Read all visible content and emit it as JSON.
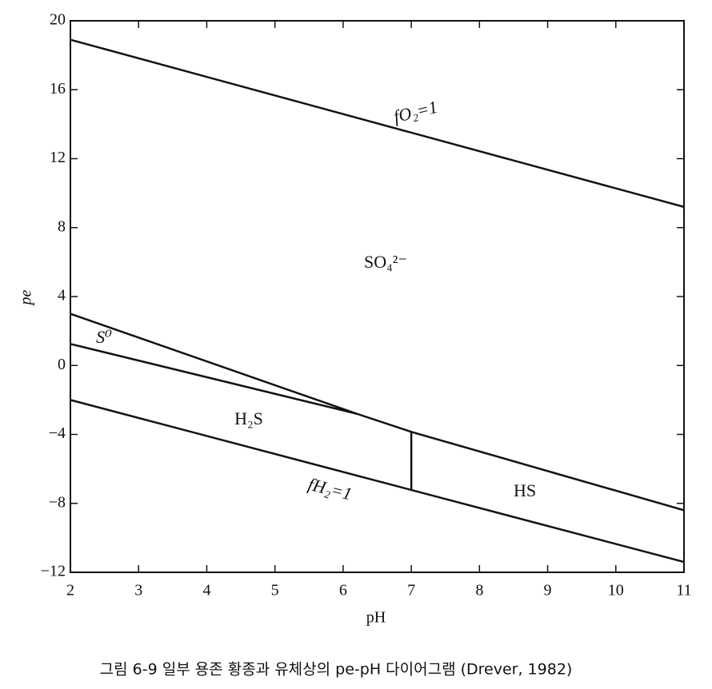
{
  "chart_data": {
    "type": "line",
    "xlabel": "pH",
    "ylabel": "pe",
    "xlim": [
      2,
      11
    ],
    "xticks": [
      2,
      3,
      4,
      5,
      6,
      7,
      8,
      9,
      10,
      11
    ],
    "ylim": [
      -12,
      20
    ],
    "yticks": [
      {
        "value": -12,
        "label": "−12"
      },
      {
        "value": -8,
        "label": "−8"
      },
      {
        "value": -4,
        "label": "−4"
      },
      0,
      4,
      8,
      12,
      16,
      20
    ],
    "series": [
      {
        "color": "#111111",
        "x": [
          2,
          11
        ],
        "values": [
          18.9,
          9.2
        ]
      },
      {
        "color": "#111111",
        "x": [
          2,
          6.2,
          7,
          11
        ],
        "values": [
          3.0,
          -2.8,
          -3.85,
          -8.4
        ]
      },
      {
        "color": "#111111",
        "x": [
          2,
          6.2
        ],
        "values": [
          1.25,
          -2.8
        ]
      },
      {
        "color": "#111111",
        "x": [
          2,
          11
        ],
        "values": [
          -2.0,
          -11.4
        ]
      },
      {
        "color": "#111111",
        "x": [
          7,
          7
        ],
        "values": [
          -3.85,
          -7.2
        ]
      }
    ],
    "annotations": [
      "fO₂=1",
      "SO₄²⁻",
      "S⁰",
      "H₂S",
      "HS",
      "fH₂=1"
    ],
    "caption": "그림 6-9  일부 용존 황종과 유체상의  pe-pH 다이어그램 (Drever, 1982)"
  }
}
